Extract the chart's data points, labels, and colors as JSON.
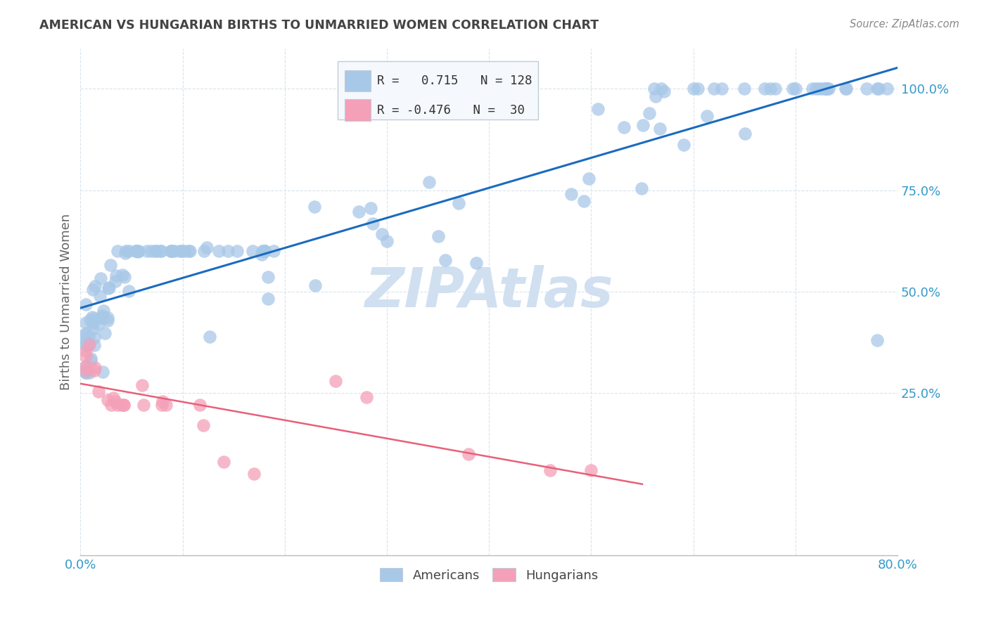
{
  "title": "AMERICAN VS HUNGARIAN BIRTHS TO UNMARRIED WOMEN CORRELATION CHART",
  "source": "Source: ZipAtlas.com",
  "ylabel": "Births to Unmarried Women",
  "ytick_labels": [
    "25.0%",
    "50.0%",
    "75.0%",
    "100.0%"
  ],
  "ytick_positions": [
    0.25,
    0.5,
    0.75,
    1.0
  ],
  "xrange": [
    0.0,
    0.8
  ],
  "yrange": [
    -0.15,
    1.1
  ],
  "americans_R": 0.715,
  "americans_N": 128,
  "hungarians_R": -0.476,
  "hungarians_N": 30,
  "blue_color": "#a8c8e8",
  "pink_color": "#f4a0b8",
  "blue_line_color": "#1a6bbf",
  "pink_line_color": "#e8607a",
  "title_color": "#444444",
  "axis_label_color": "#3399cc",
  "watermark_color": "#d0e0f0",
  "background_color": "#ffffff",
  "legend_box_color": "#f5f8fc",
  "legend_border_color": "#c0ccd8",
  "grid_color": "#d8e4ec",
  "bottom_legend_color": "#444444"
}
